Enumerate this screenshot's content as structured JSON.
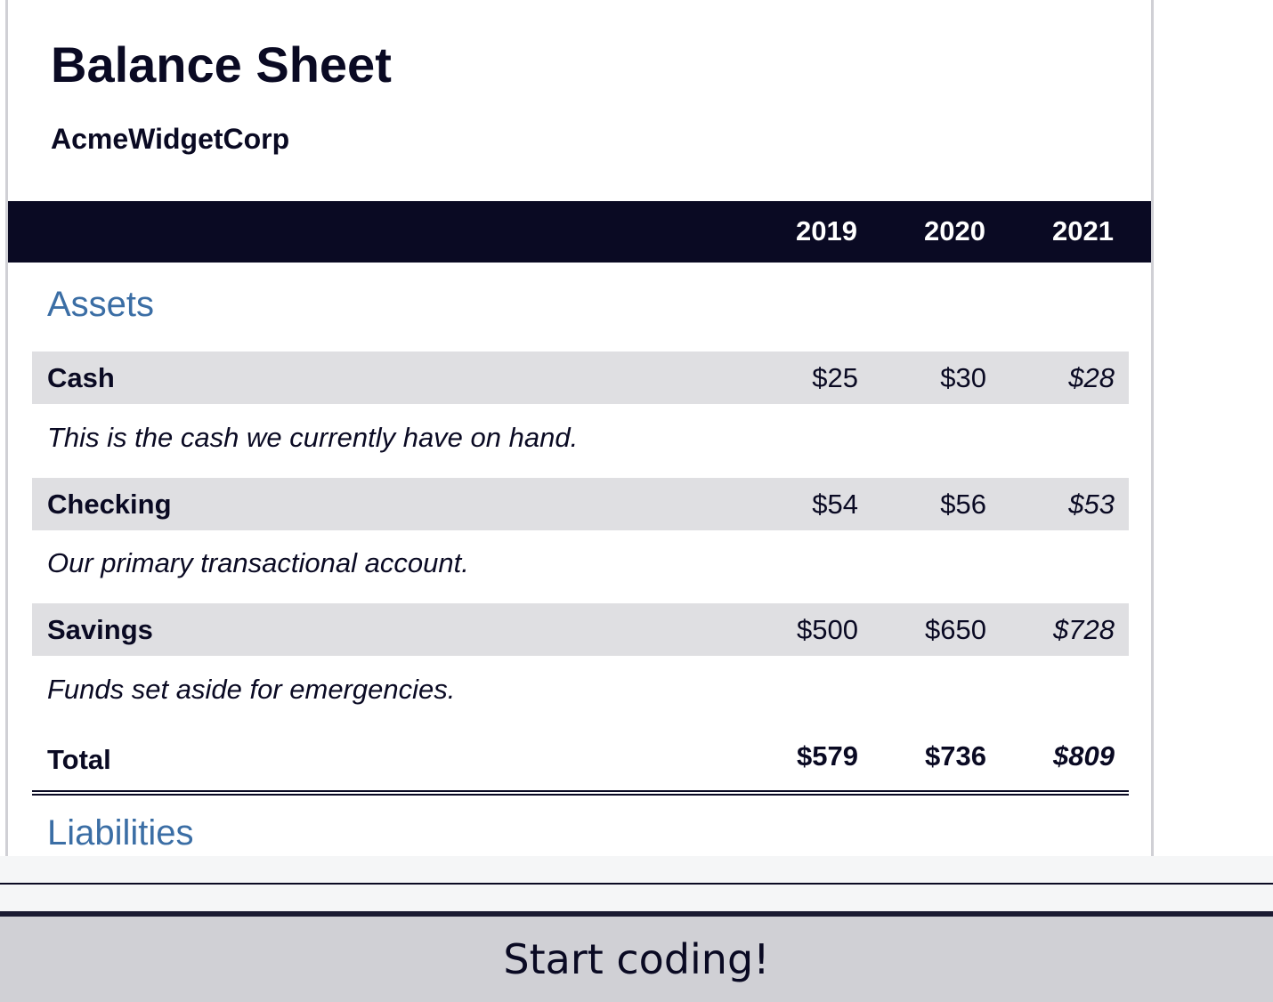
{
  "sheet": {
    "title": "Balance Sheet",
    "company": "AcmeWidgetCorp",
    "years": [
      "2019",
      "2020",
      "2021"
    ]
  },
  "assets": {
    "heading": "Assets",
    "rows": [
      {
        "label": "Cash",
        "values": [
          "$25",
          "$30",
          "$28"
        ],
        "description": "This is the cash we currently have on hand."
      },
      {
        "label": "Checking",
        "values": [
          "$54",
          "$56",
          "$53"
        ],
        "description": "Our primary transactional account."
      },
      {
        "label": "Savings",
        "values": [
          "$500",
          "$650",
          "$728"
        ],
        "description": "Funds set aside for emergencies."
      }
    ],
    "total": {
      "label": "Total",
      "values": [
        "$579",
        "$736",
        "$809"
      ]
    }
  },
  "liabilities": {
    "heading": "Liabilities"
  },
  "footer": {
    "button_label": "Start coding!"
  },
  "colors": {
    "header_bg": "#0a0a23",
    "section_heading": "#3b6ea5",
    "row_bg": "#dfdfe2",
    "button_bg": "#d0d0d5"
  }
}
